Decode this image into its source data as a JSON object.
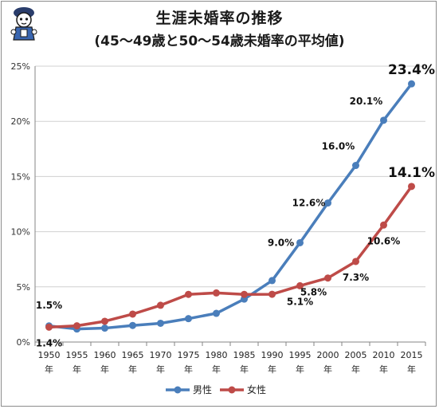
{
  "header": {
    "title_line1": "生涯未婚率の推移",
    "title_line2": "(45〜49歳と50〜54歳未婚率の平均値)"
  },
  "colors": {
    "male": "#4a7ebb",
    "female": "#be4b48",
    "grid": "#d0d0d0",
    "axis": "#868686"
  },
  "chart_data": {
    "type": "line",
    "title": "生涯未婚率の推移 (45〜49歳と50〜54歳未婚率の平均値)",
    "categories": [
      "1950",
      "1955",
      "1960",
      "1965",
      "1970",
      "1975",
      "1980",
      "1985",
      "1990",
      "1995",
      "2000",
      "2005",
      "2010",
      "2015"
    ],
    "category_suffix": "年",
    "series": [
      {
        "name": "男性",
        "values": [
          1.46,
          1.18,
          1.26,
          1.5,
          1.7,
          2.12,
          2.6,
          3.89,
          5.57,
          9.0,
          12.6,
          16.0,
          20.1,
          23.4
        ]
      },
      {
        "name": "女性",
        "values": [
          1.35,
          1.47,
          1.88,
          2.53,
          3.33,
          4.32,
          4.45,
          4.32,
          4.33,
          5.1,
          5.8,
          7.3,
          10.6,
          14.1
        ]
      }
    ],
    "ylim": [
      0,
      25
    ],
    "yticks": [
      "0%",
      "5%",
      "10%",
      "15%",
      "20%",
      "25%"
    ],
    "data_labels": [
      {
        "text": "1.5%",
        "series": 0,
        "index": 0,
        "pos": "above"
      },
      {
        "text": "1.4%",
        "series": 1,
        "index": 0,
        "pos": "below"
      },
      {
        "text": "9.0%",
        "series": 0,
        "index": 9,
        "pos": "left"
      },
      {
        "text": "12.6%",
        "series": 0,
        "index": 10,
        "pos": "left"
      },
      {
        "text": "16.0%",
        "series": 0,
        "index": 11,
        "pos": "upleft"
      },
      {
        "text": "20.1%",
        "series": 0,
        "index": 12,
        "pos": "upleft"
      },
      {
        "text": "23.4%",
        "series": 0,
        "index": 13,
        "pos": "topbig"
      },
      {
        "text": "5.1%",
        "series": 1,
        "index": 9,
        "pos": "below"
      },
      {
        "text": "5.8%",
        "series": 1,
        "index": 10,
        "pos": "belowleft"
      },
      {
        "text": "7.3%",
        "series": 1,
        "index": 11,
        "pos": "below"
      },
      {
        "text": "10.6%",
        "series": 1,
        "index": 12,
        "pos": "below"
      },
      {
        "text": "14.1%",
        "series": 1,
        "index": 13,
        "pos": "topbig"
      }
    ],
    "legend": {
      "position": "bottom",
      "entries": [
        "男性",
        "女性"
      ]
    },
    "grid": true
  }
}
